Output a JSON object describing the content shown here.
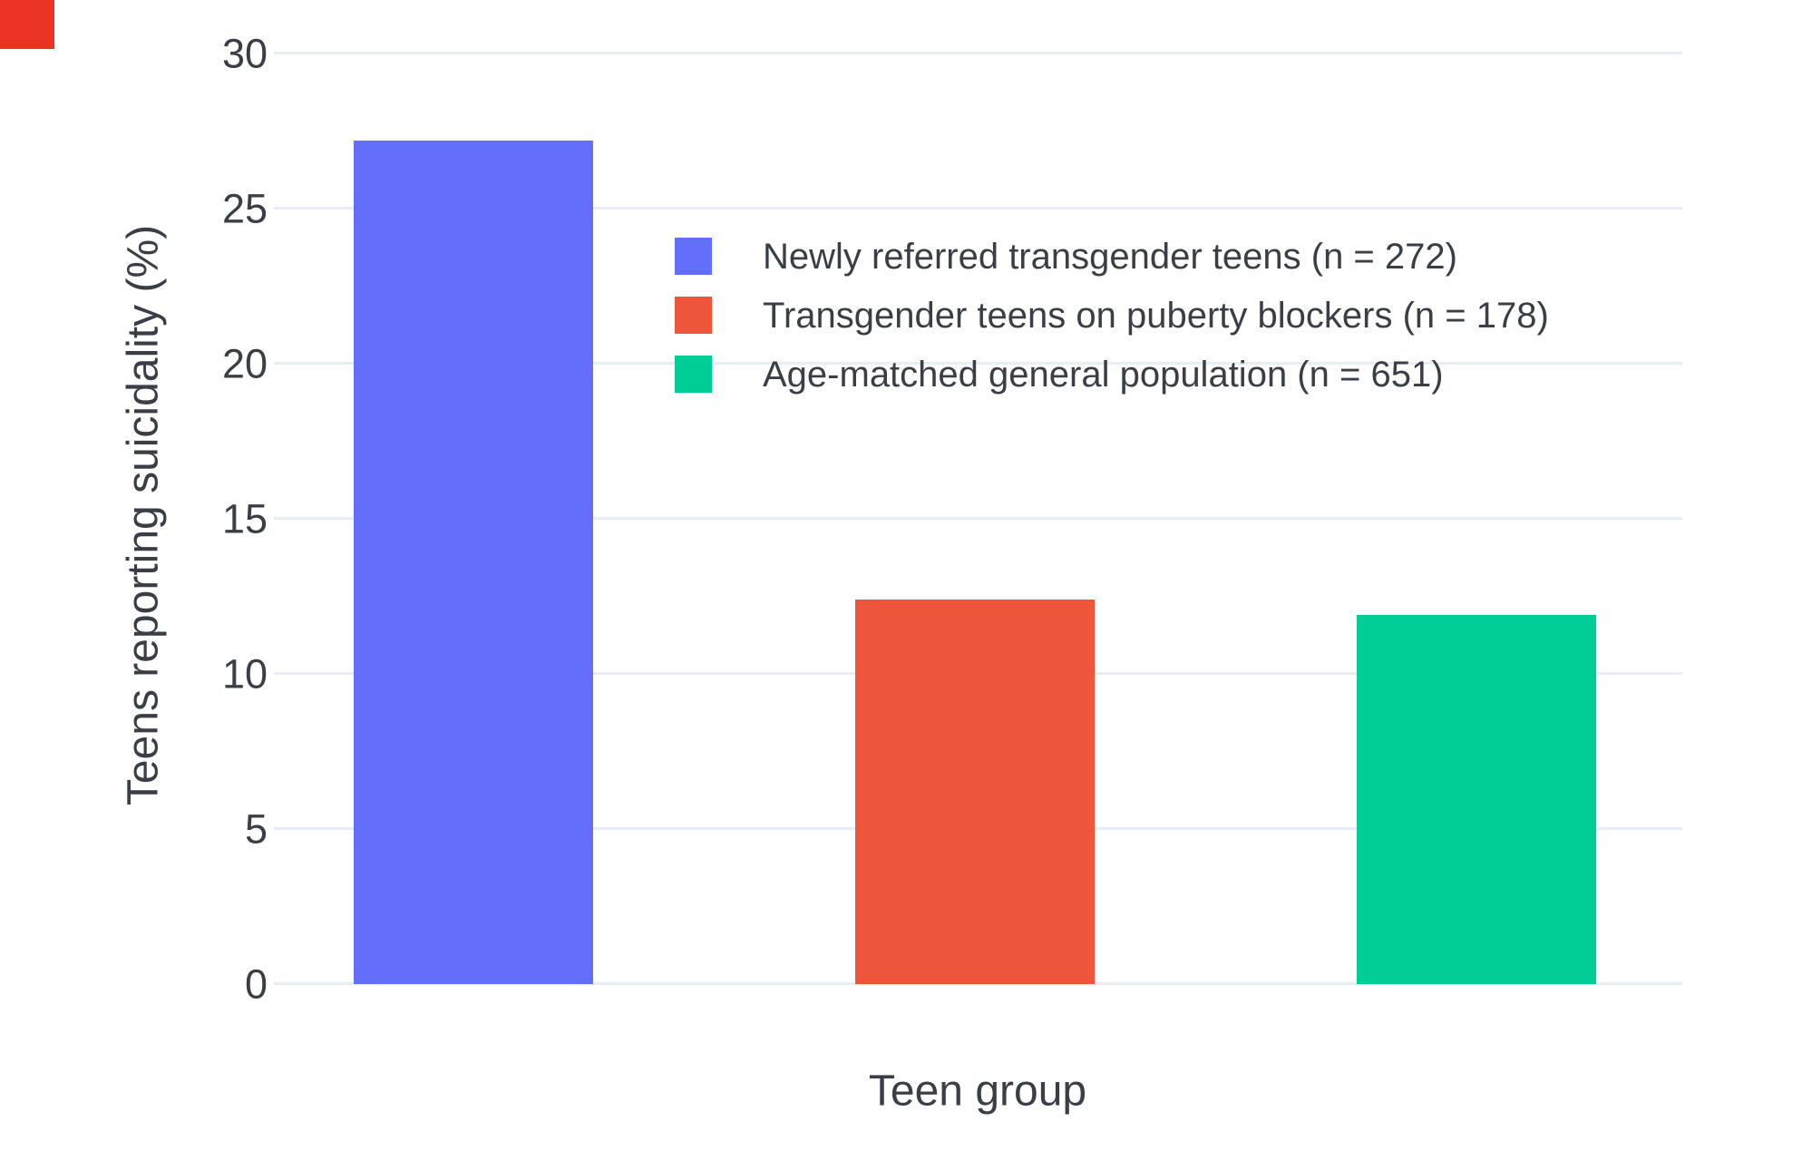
{
  "figure": {
    "background": "#ffffff",
    "grid_color": "#E8EEF6",
    "text_color": "#3a3f47",
    "corner_marker_color": "#EA3323"
  },
  "chart_data": {
    "type": "bar",
    "title": "",
    "xlabel": "Teen group",
    "ylabel": "Teens reporting suicidality (%)",
    "ylim": [
      0,
      30
    ],
    "yticks": [
      0,
      5,
      10,
      15,
      20,
      25,
      30
    ],
    "grid": true,
    "legend_position": "inside-top-center",
    "categories": [
      "Newly referred transgender teens (n = 272)",
      "Transgender teens on puberty blockers (n = 178)",
      "Age-matched general population (n = 651)"
    ],
    "values": [
      27.2,
      12.4,
      11.9
    ],
    "colors": [
      "#636EFA",
      "#EF553B",
      "#00CC96"
    ]
  }
}
